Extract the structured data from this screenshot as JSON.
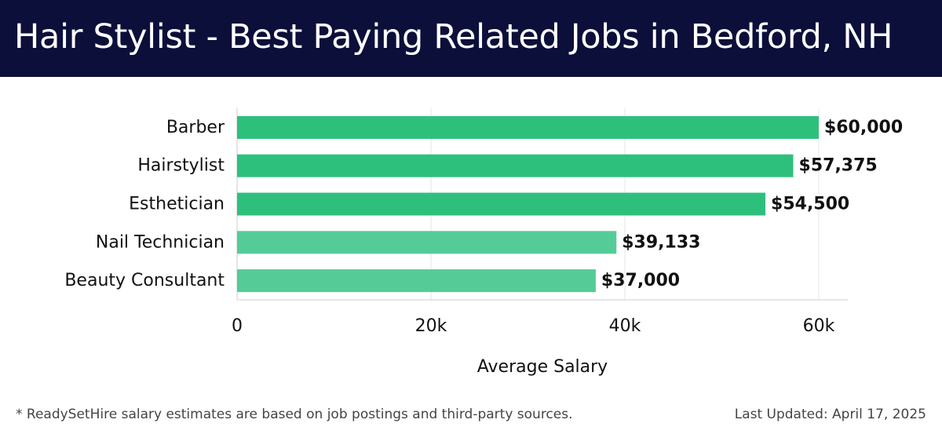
{
  "title": "Hair Stylist - Best Paying Related Jobs in Bedford, NH",
  "footnote": "* ReadySetHire salary estimates are based on job postings and third-party sources.",
  "last_updated": "Last Updated: April 17, 2025",
  "colors": {
    "header_bg": "#0c0f3a",
    "bar_primary": "#2dc07c",
    "bar_secondary": "#55cc97",
    "grid": "#e6e6e6"
  },
  "chart_data": {
    "type": "bar",
    "orientation": "horizontal",
    "categories": [
      "Barber",
      "Hairstylist",
      "Esthetician",
      "Nail Technician",
      "Beauty Consultant"
    ],
    "values": [
      60000,
      57375,
      54500,
      39133,
      37000
    ],
    "value_labels": [
      "$60,000",
      "$57,375",
      "$54,500",
      "$39,133",
      "$37,000"
    ],
    "bar_shade": [
      "primary",
      "primary",
      "primary",
      "secondary",
      "secondary"
    ],
    "xlabel": "Average Salary",
    "ylabel": "",
    "xlim": [
      0,
      63000
    ],
    "xticks": [
      0,
      20000,
      40000,
      60000
    ],
    "xtick_labels": [
      "0",
      "20k",
      "40k",
      "60k"
    ],
    "grid": true
  }
}
